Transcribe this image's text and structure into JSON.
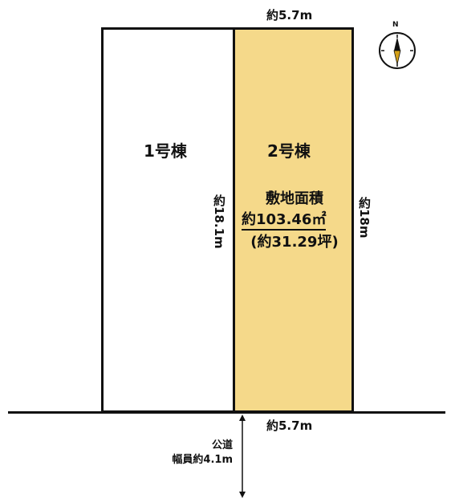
{
  "colors": {
    "lot2_fill": "#f5d98a",
    "lot1_fill": "#ffffff",
    "line": "#111111"
  },
  "lots": [
    {
      "label": "1号棟"
    },
    {
      "label": "2号棟",
      "area_title": "敷地面積",
      "area_sqm": "約103.46㎡",
      "area_tsubo": "(約31.29坪)"
    }
  ],
  "dimensions": {
    "top_width": "約5.7m",
    "bottom_width": "約5.7m",
    "left_depth": "約18.1m",
    "right_depth": "約18m"
  },
  "road": {
    "type": "公道",
    "width": "幅員約4.1m"
  },
  "compass": {
    "north_label": "N",
    "icon": "compass-icon"
  }
}
